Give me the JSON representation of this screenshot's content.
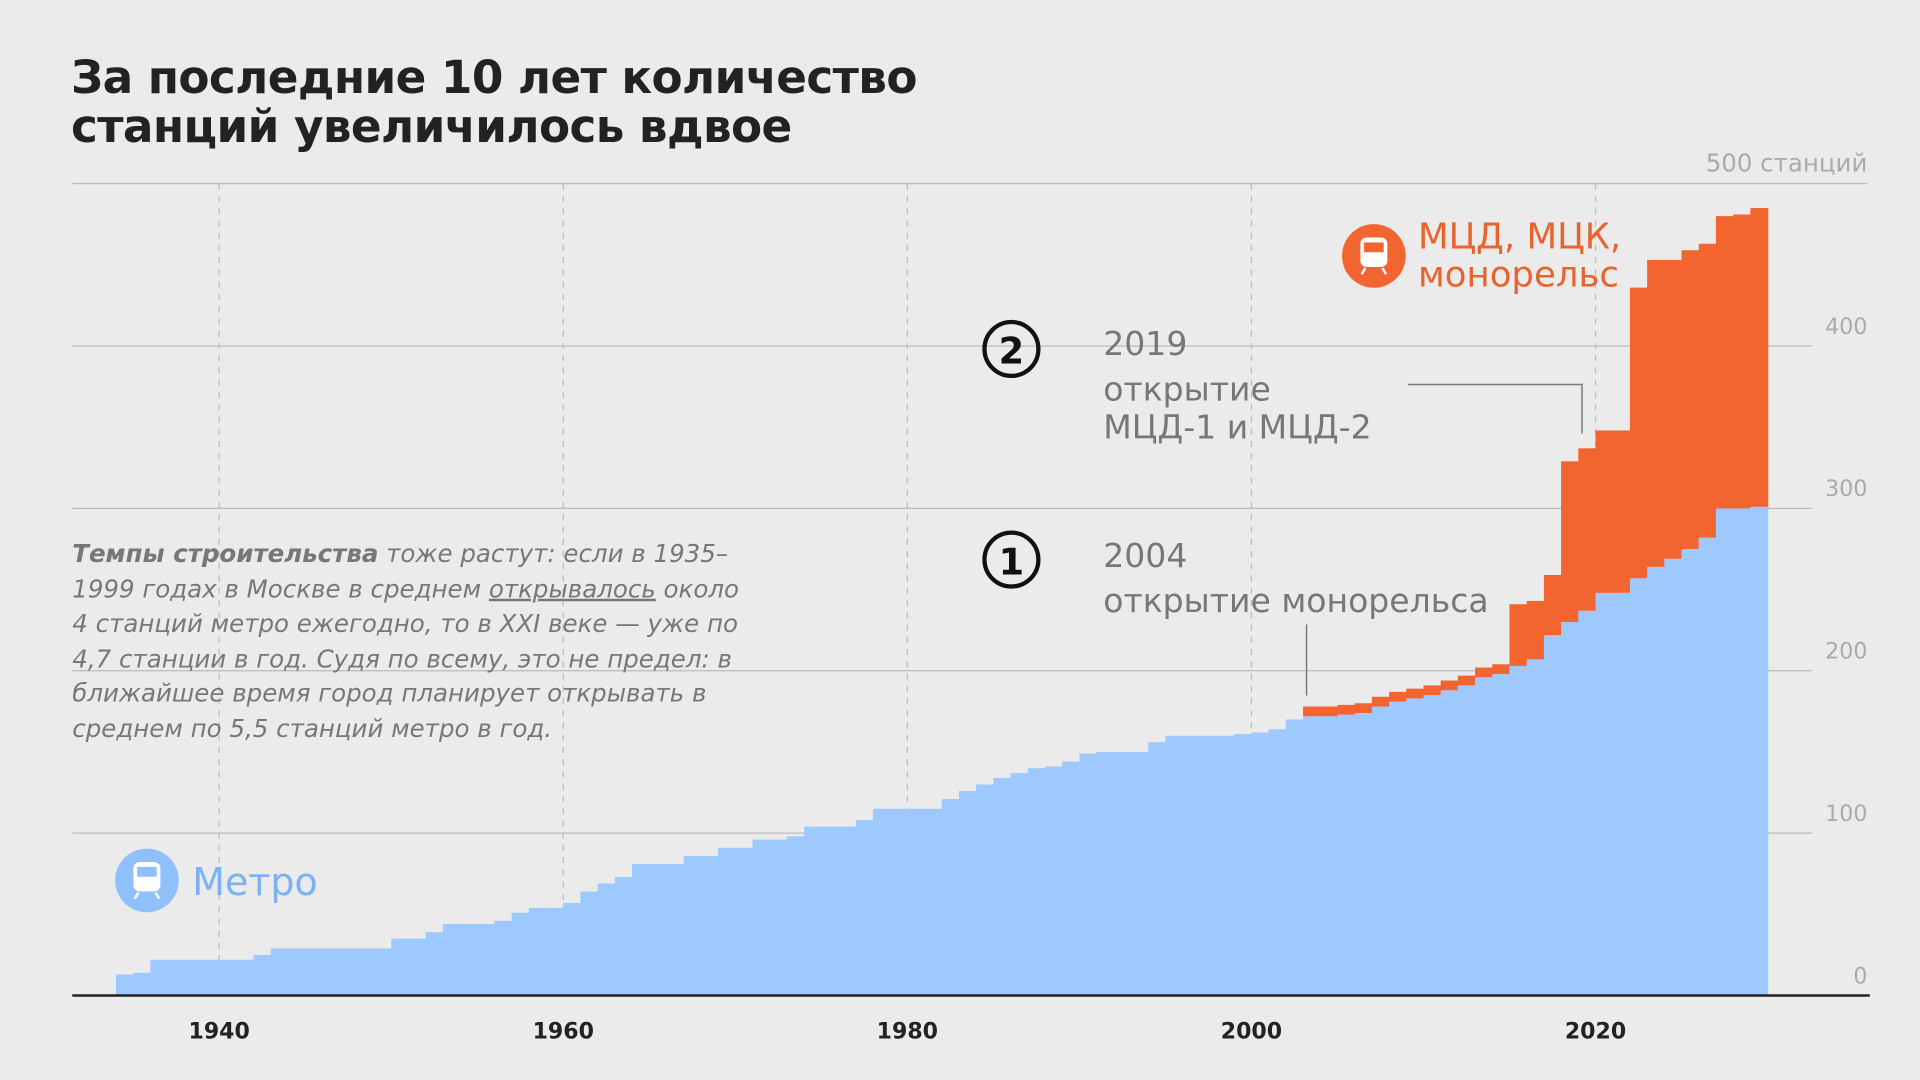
{
  "chart_data": {
    "type": "stacked-step-area",
    "title": "За последние 10 лет количество станций увеличилось вдвое",
    "paragraph": [
      "Темпы строительства",
      " тоже растут: если в 1935–1999 годах в Москве в среднем ",
      "открывалось",
      " около 4 станций метро ежегодно, то в XXI веке — уже по 4,7 станции в год. Судя по всему, это не предел: в ближайшее время город планирует открывать в среднем по 5,5 станций метро в год."
    ],
    "annotations": [
      {
        "number": "1",
        "lines": [
          "2004",
          "открытие монорельса"
        ]
      },
      {
        "number": "2",
        "lines": [
          "2019",
          "открытие",
          "МЦД-1 и МЦД-2"
        ]
      }
    ],
    "x": [
      1934,
      1935,
      1936,
      1937,
      1938,
      1939,
      1940,
      1941,
      1942,
      1943,
      1944,
      1945,
      1946,
      1947,
      1948,
      1949,
      1950,
      1951,
      1952,
      1953,
      1954,
      1955,
      1956,
      1957,
      1958,
      1959,
      1960,
      1961,
      1962,
      1963,
      1964,
      1965,
      1966,
      1967,
      1968,
      1969,
      1970,
      1971,
      1972,
      1973,
      1974,
      1975,
      1976,
      1977,
      1978,
      1979,
      1980,
      1981,
      1982,
      1983,
      1984,
      1985,
      1986,
      1987,
      1988,
      1989,
      1990,
      1991,
      1992,
      1993,
      1994,
      1995,
      1996,
      1997,
      1998,
      1999,
      2000,
      2001,
      2002,
      2003,
      2004,
      2005,
      2006,
      2007,
      2008,
      2009,
      2010,
      2011,
      2012,
      2013,
      2014,
      2015,
      2016,
      2017,
      2018,
      2019,
      2020,
      2021,
      2022,
      2023,
      2024,
      2025,
      2026,
      2027,
      2028,
      2029
    ],
    "series": [
      {
        "name": "Метро",
        "color": "#9ec9ff",
        "values": [
          13,
          14,
          22,
          22,
          22,
          22,
          22,
          22,
          25,
          29,
          29,
          29,
          29,
          29,
          29,
          29,
          35,
          35,
          39,
          44,
          44,
          44,
          46,
          51,
          54,
          54,
          57,
          64,
          69,
          73,
          81,
          81,
          81,
          86,
          86,
          91,
          91,
          96,
          96,
          98,
          104,
          104,
          104,
          108,
          115,
          115,
          115,
          115,
          121,
          126,
          130,
          134,
          137,
          140,
          141,
          144,
          149,
          150,
          150,
          150,
          156,
          160,
          160,
          160,
          160,
          161,
          162,
          164,
          170,
          172,
          172,
          173,
          174,
          178,
          181,
          183,
          185,
          188,
          191,
          196,
          198,
          203,
          207,
          222,
          230,
          237,
          248,
          248,
          257,
          264,
          269,
          275,
          282,
          300,
          300,
          301
        ]
      },
      {
        "name": "МЦД, МЦК, монорельс",
        "color": "#f26530",
        "values": [
          null,
          null,
          null,
          null,
          null,
          null,
          null,
          null,
          null,
          null,
          null,
          null,
          null,
          null,
          null,
          null,
          null,
          null,
          null,
          null,
          null,
          null,
          null,
          null,
          null,
          null,
          null,
          null,
          null,
          null,
          null,
          null,
          null,
          null,
          null,
          null,
          null,
          null,
          null,
          null,
          null,
          null,
          null,
          null,
          null,
          null,
          null,
          null,
          null,
          null,
          null,
          null,
          null,
          null,
          null,
          null,
          null,
          null,
          null,
          null,
          null,
          null,
          null,
          null,
          null,
          null,
          null,
          null,
          null,
          6,
          6,
          6,
          6,
          6,
          6,
          6,
          6,
          6,
          6,
          6,
          6,
          38,
          36,
          37,
          99,
          100,
          100,
          100,
          179,
          189,
          184,
          184,
          181,
          180,
          181,
          184
        ]
      }
    ],
    "xlim": [
      1932,
      2036
    ],
    "xticks": [
      1940,
      1960,
      1980,
      2000,
      2020
    ],
    "ylim": [
      0,
      500
    ],
    "yticks": [
      0,
      100,
      200,
      300,
      400,
      {
        "value": 500,
        "label": "500 станций"
      }
    ],
    "grid": true
  }
}
